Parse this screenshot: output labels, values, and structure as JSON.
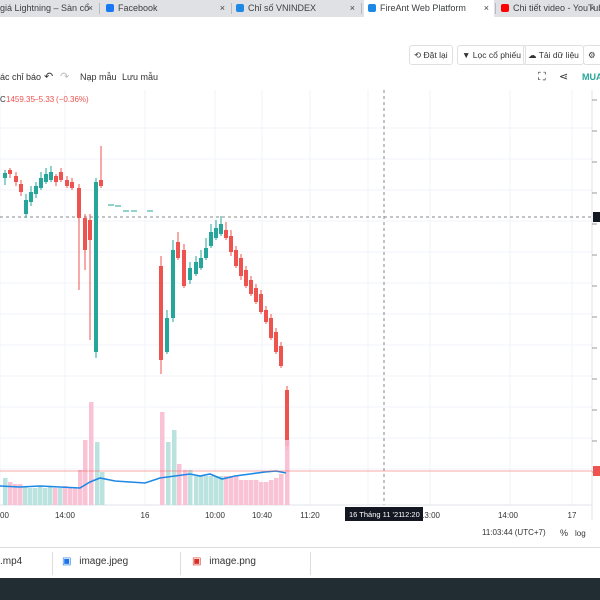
{
  "browser": {
    "tabs": [
      {
        "title": "giá Lightning – Sàn cổ",
        "icon_color": "#ff6d00",
        "icon": "site-icon",
        "active": false
      },
      {
        "title": "Facebook",
        "icon_color": "#1877f2",
        "icon": "facebook-icon",
        "active": false
      },
      {
        "title": "Chỉ số VNINDEX",
        "icon_color": "#1e88e5",
        "icon": "fireant-icon",
        "active": false
      },
      {
        "title": "FireAnt Web Platform",
        "icon_color": "#1e88e5",
        "icon": "fireant-icon",
        "active": true
      },
      {
        "title": "Chi tiết video - YouTube",
        "icon_color": "#ff0000",
        "icon": "youtube-icon",
        "active": false
      }
    ],
    "close_glyph": "×"
  },
  "actions": {
    "reset": "Đặt lại",
    "filter": "Lọc cổ phiếu",
    "download": "Tải dữ liệu"
  },
  "toolbar": {
    "indicators": "ác chỉ báo",
    "templates": "Nạp mẫu",
    "save": "Lưu mẫu",
    "buy": "MUA"
  },
  "legend": {
    "close_label": "C",
    "close_value": "1459.35",
    "change": "−5.33",
    "change_pct": "(−0.36%)"
  },
  "axis": {
    "time_labels": [
      "00",
      "14:00",
      "16",
      "10:00",
      "10:40",
      "11:20",
      "13:00",
      "14:00",
      "17"
    ],
    "crosshair_date": "16 Tháng 11 '21",
    "crosshair_time": "12:20",
    "clock": "11:03:44 (UTC+7)",
    "pct": "%",
    "log": "log"
  },
  "colors": {
    "up": "#26a69a",
    "down": "#ef5350",
    "vol_up": "#b2dfdb",
    "vol_down": "#f8bbd0",
    "ma": "#1e88e5"
  },
  "downloads": [
    {
      "name": ".mp4"
    },
    {
      "name": "image.jpeg"
    },
    {
      "name": "image.png"
    }
  ]
}
